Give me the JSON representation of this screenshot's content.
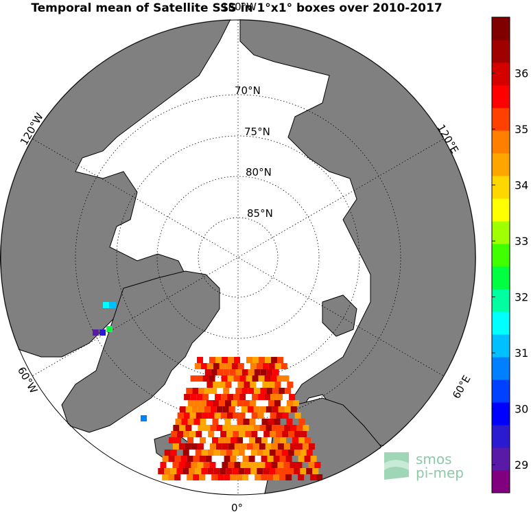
{
  "title": "Temporal mean of Satellite SSS in 1°x1° boxes over 2010-2017",
  "map": {
    "projection": "north-polar-stereographic",
    "land_color": "#808080",
    "lat_labels": [
      "70°N",
      "75°N",
      "80°N",
      "85°N"
    ],
    "lon_labels": [
      "180°W",
      "120°W",
      "60°W",
      "0°",
      "60°E",
      "120°E"
    ]
  },
  "colorbar": {
    "min": 28.5,
    "max": 37.0,
    "tick_labels": [
      "29",
      "30",
      "31",
      "32",
      "33",
      "34",
      "35",
      "36"
    ],
    "colors": [
      "#800080",
      "#5a1aa8",
      "#2a1ad0",
      "#0000ff",
      "#0040ff",
      "#0080ff",
      "#00c0ff",
      "#00ffff",
      "#00ffa0",
      "#00ff40",
      "#40ff00",
      "#a0ff00",
      "#ffff00",
      "#ffd700",
      "#ffa500",
      "#ff7f00",
      "#ff4000",
      "#ff0000",
      "#d40000",
      "#a00000",
      "#800000"
    ]
  },
  "logo": {
    "line1": "smos",
    "line2": "pi-mep"
  }
}
